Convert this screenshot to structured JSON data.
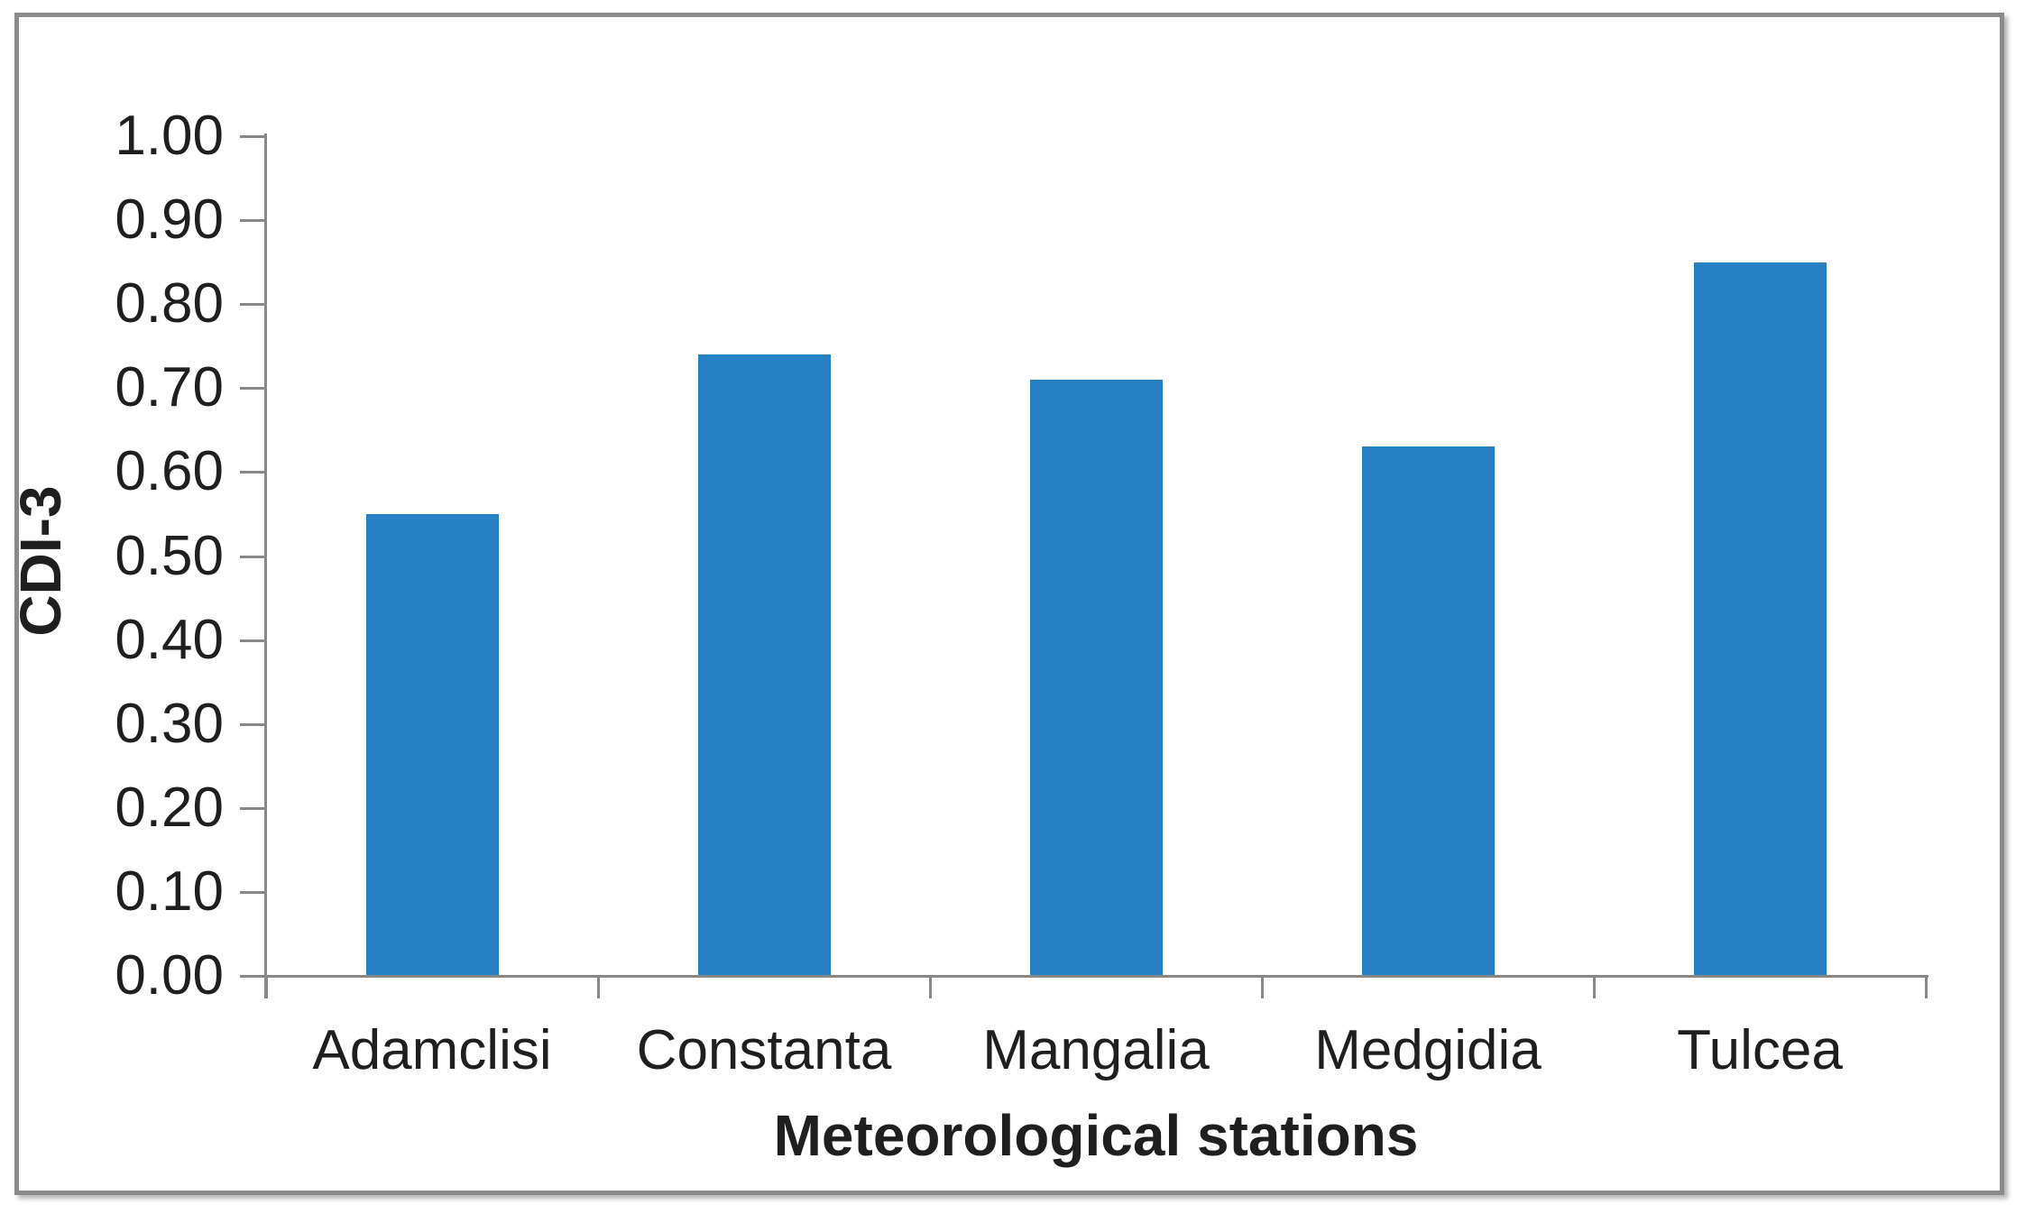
{
  "figure": {
    "background": "#ffffff",
    "border_color": "#8a8a8a"
  },
  "chart_data": {
    "type": "bar",
    "title": "",
    "categories": [
      "Adamclisi",
      "Constanta",
      "Mangalia",
      "Medgidia",
      "Tulcea"
    ],
    "values": [
      0.55,
      0.74,
      0.71,
      0.63,
      0.85
    ],
    "xlabel": "Meteorological stations",
    "ylabel": "CDI-3",
    "ylim": [
      0.0,
      1.0
    ],
    "ytick_step": 0.1,
    "ytick_labels": [
      "1.00",
      "0.90",
      "0.80",
      "0.70",
      "0.60",
      "0.50",
      "0.40",
      "0.30",
      "0.20",
      "0.10",
      "0.00"
    ],
    "grid": false,
    "legend_position": "none",
    "bar_color": "#2581C3",
    "axis_color": "#888888",
    "text_color": "#1f1f1f"
  }
}
